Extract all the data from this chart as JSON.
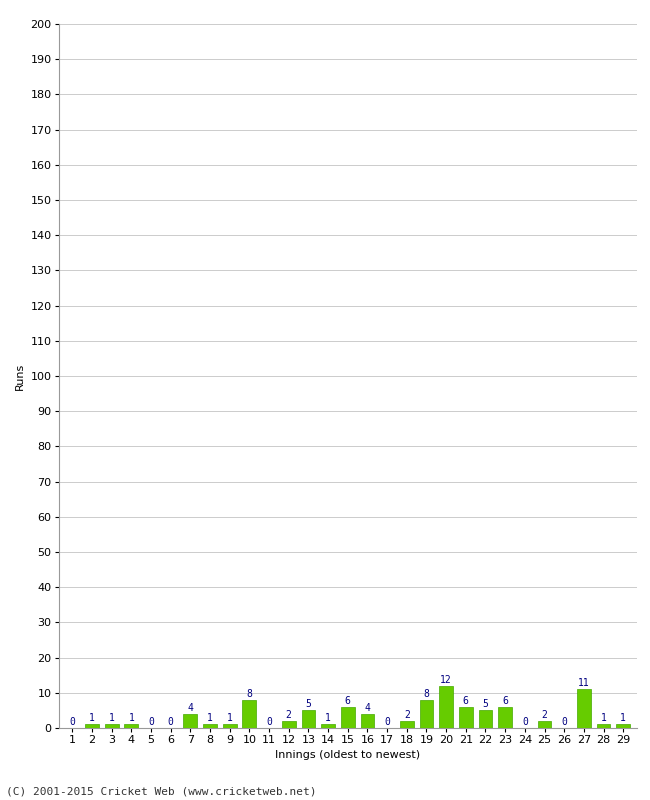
{
  "innings": [
    1,
    2,
    3,
    4,
    5,
    6,
    7,
    8,
    9,
    10,
    11,
    12,
    13,
    14,
    15,
    16,
    17,
    18,
    19,
    20,
    21,
    22,
    23,
    24,
    25,
    26,
    27,
    28,
    29
  ],
  "runs": [
    0,
    1,
    1,
    1,
    0,
    0,
    4,
    1,
    1,
    8,
    0,
    2,
    5,
    1,
    6,
    4,
    0,
    2,
    8,
    12,
    6,
    5,
    6,
    0,
    2,
    0,
    11,
    1,
    1
  ],
  "bar_color": "#66cc00",
  "bar_edge_color": "#44aa00",
  "label_color": "#000080",
  "xlabel": "Innings (oldest to newest)",
  "ylabel": "Runs",
  "ylim": [
    0,
    200
  ],
  "yticks": [
    0,
    10,
    20,
    30,
    40,
    50,
    60,
    70,
    80,
    90,
    100,
    110,
    120,
    130,
    140,
    150,
    160,
    170,
    180,
    190,
    200
  ],
  "footer": "(C) 2001-2015 Cricket Web (www.cricketweb.net)",
  "background_color": "#ffffff",
  "grid_color": "#cccccc",
  "axis_fontsize": 8,
  "label_fontsize": 7,
  "footer_fontsize": 8
}
